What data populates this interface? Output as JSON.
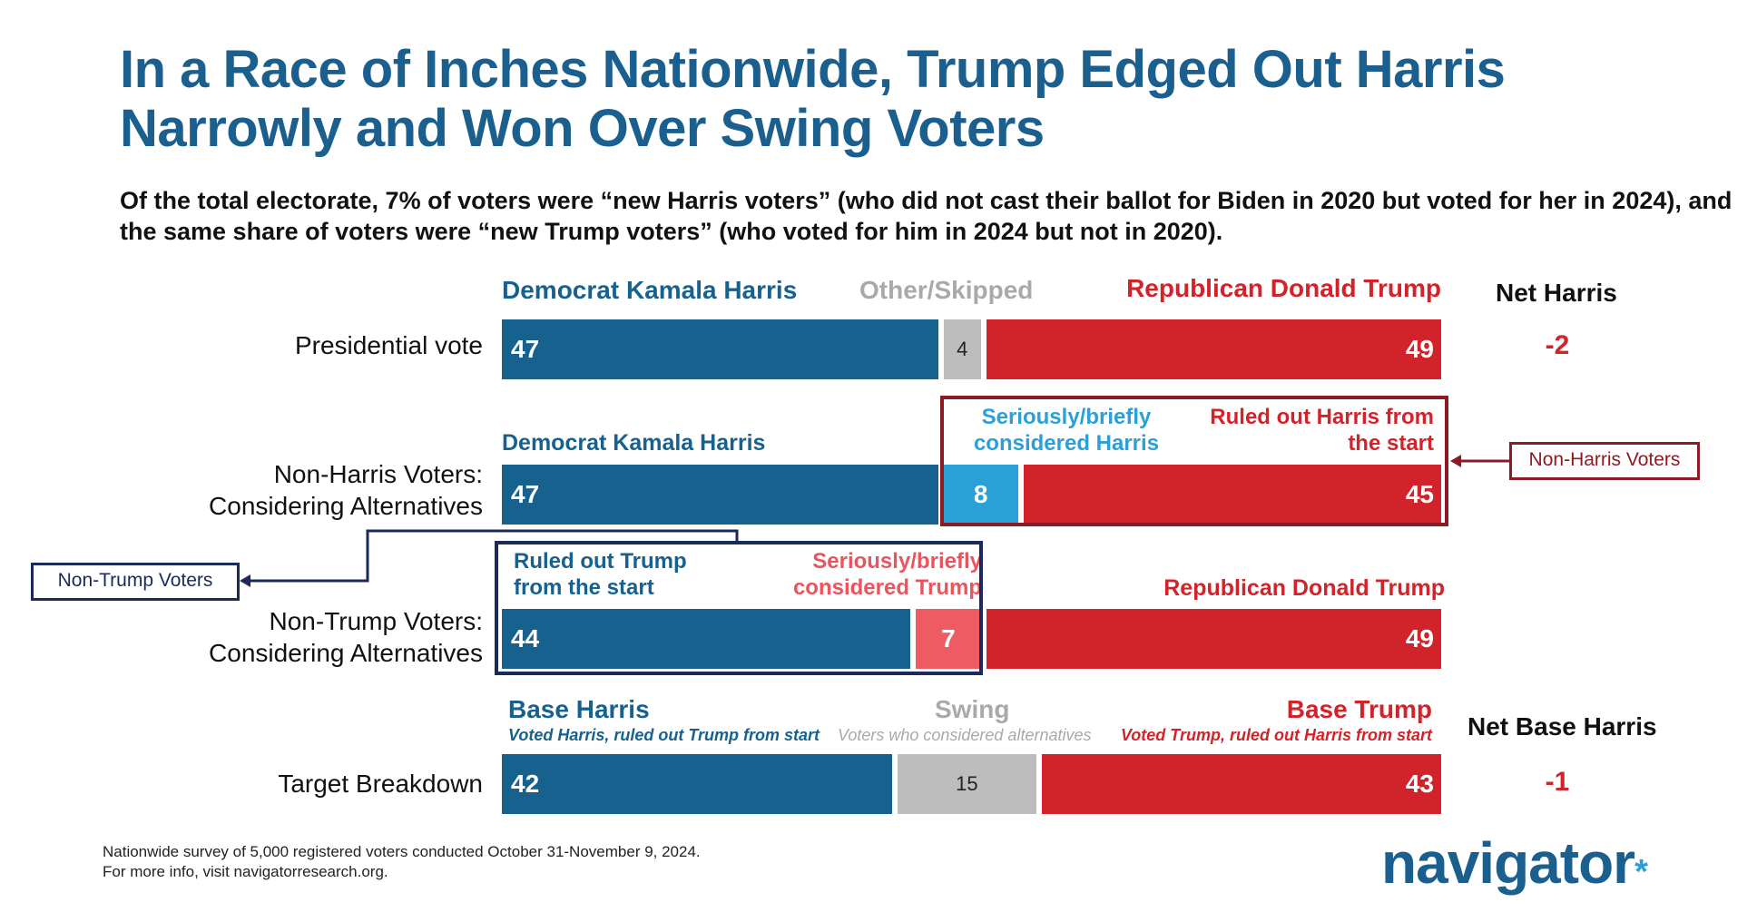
{
  "title": "In a Race of Inches Nationwide, Trump Edged Out Harris Narrowly and Won Over Swing Voters",
  "subtitle": "Of the total electorate, 7% of voters were “new Harris voters” (who did not cast their ballot for Biden in 2020 but voted for her in 2024), and the same share of voters were “new Trump voters” (who voted for him in 2024 but not in 2020).",
  "colors": {
    "harris_blue": "#17618f",
    "trump_red": "#d3232a",
    "other_grey": "#bdbdbd",
    "considered_harris": "#2aa0d6",
    "considered_trump": "#ef5b63",
    "non_harris_box": "#8c1b24",
    "non_trump_box": "#1b2a5c"
  },
  "headers": {
    "row1": {
      "harris": "Democrat Kamala Harris",
      "other": "Other/Skipped",
      "trump": "Republican Donald Trump",
      "net": "Net Harris"
    },
    "row2": {
      "harris": "Democrat Kamala Harris",
      "considered": "Seriously/briefly considered Harris",
      "ruled_out": "Ruled out Harris from the start"
    },
    "row3": {
      "ruled_out": "Ruled out Trump from the start",
      "considered": "Seriously/briefly considered Trump",
      "trump": "Republican Donald Trump"
    },
    "row4": {
      "base_harris": "Base Harris",
      "base_harris_sub": "Voted Harris, ruled out Trump from start",
      "swing": "Swing",
      "swing_sub": "Voters who considered alternatives",
      "base_trump": "Base Trump",
      "base_trump_sub": "Voted Trump, ruled out Harris from start",
      "net": "Net Base Harris"
    }
  },
  "tags": {
    "non_harris": "Non-Harris Voters",
    "non_trump": "Non-Trump Voters"
  },
  "chart_data": {
    "type": "bar",
    "orientation": "horizontal-stacked",
    "categories": [
      "Presidential vote",
      "Non-Harris Voters: Considering Alternatives",
      "Non-Trump Voters: Considering Alternatives",
      "Target Breakdown"
    ],
    "rows": [
      {
        "label_lines": [
          "Presidential vote"
        ],
        "segments": [
          {
            "name": "Democrat Kamala Harris",
            "value": 47,
            "color": "#17618f"
          },
          {
            "name": "Other/Skipped",
            "value": 4,
            "color": "#bdbdbd"
          },
          {
            "name": "Republican Donald Trump",
            "value": 49,
            "color": "#d3232a"
          }
        ],
        "net": "-2"
      },
      {
        "label_lines": [
          "Non-Harris Voters:",
          "Considering Alternatives"
        ],
        "segments": [
          {
            "name": "Democrat Kamala Harris",
            "value": 47,
            "color": "#17618f"
          },
          {
            "name": "Seriously/briefly considered Harris",
            "value": 8,
            "color": "#2aa0d6"
          },
          {
            "name": "Ruled out Harris from the start",
            "value": 45,
            "color": "#d3232a"
          }
        ]
      },
      {
        "label_lines": [
          "Non-Trump Voters:",
          "Considering Alternatives"
        ],
        "segments": [
          {
            "name": "Ruled out Trump from the start",
            "value": 44,
            "color": "#17618f"
          },
          {
            "name": "Seriously/briefly considered Trump",
            "value": 7,
            "color": "#ef5b63"
          },
          {
            "name": "Republican Donald Trump",
            "value": 49,
            "color": "#d3232a"
          }
        ]
      },
      {
        "label_lines": [
          "Target Breakdown"
        ],
        "segments": [
          {
            "name": "Base Harris",
            "value": 42,
            "color": "#17618f"
          },
          {
            "name": "Swing",
            "value": 15,
            "color": "#bdbdbd"
          },
          {
            "name": "Base Trump",
            "value": 43,
            "color": "#d3232a"
          }
        ],
        "net": "-1"
      }
    ]
  },
  "footnote": {
    "line1": "Nationwide survey of 5,000 registered voters conducted October 31-November 9, 2024.",
    "line2": "For more info, visit navigatorresearch.org."
  },
  "logo": {
    "text": "navigator",
    "mark": "*"
  }
}
